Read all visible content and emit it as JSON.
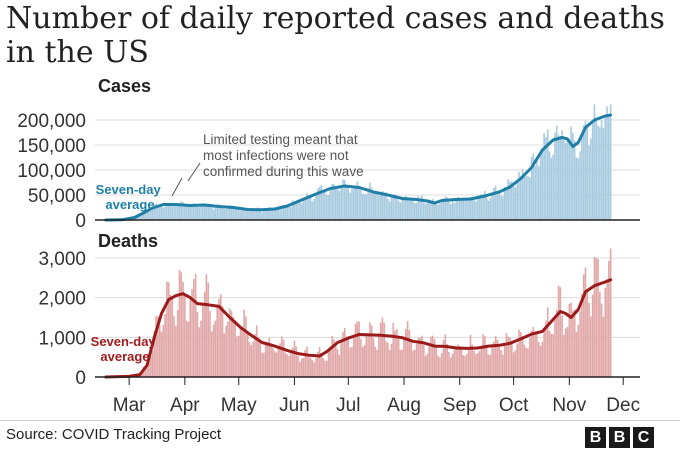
{
  "title": "Number of daily reported cases and deaths in the US",
  "source": "Source: COVID Tracking Project",
  "logo_letters": [
    "B",
    "B",
    "C"
  ],
  "months": [
    "Mar",
    "Apr",
    "May",
    "Jun",
    "Jul",
    "Aug",
    "Sep",
    "Oct",
    "Nov",
    "Dec"
  ],
  "chart_data": [
    {
      "type": "bar",
      "title": "Cases",
      "ylim": [
        0,
        220000
      ],
      "yticks": [
        0,
        50000,
        100000,
        150000,
        200000
      ],
      "ytick_labels": [
        "0",
        "50,000",
        "100,000",
        "150,000",
        "200,000"
      ],
      "colors": {
        "bars": "#a9cbe0",
        "line": "#1f7fa6",
        "label": "#1f7fa6"
      },
      "series": [
        {
          "name": "Seven-day average",
          "type": "line",
          "points": [
            [
              1,
              0
            ],
            [
              10,
              500
            ],
            [
              17,
              5000
            ],
            [
              22,
              14000
            ],
            [
              27,
              24000
            ],
            [
              33,
              31000
            ],
            [
              40,
              31000
            ],
            [
              48,
              29000
            ],
            [
              56,
              30000
            ],
            [
              64,
              27000
            ],
            [
              72,
              25000
            ],
            [
              80,
              21000
            ],
            [
              88,
              20500
            ],
            [
              95,
              22000
            ],
            [
              102,
              28000
            ],
            [
              110,
              40000
            ],
            [
              118,
              52000
            ],
            [
              126,
              63000
            ],
            [
              134,
              68000
            ],
            [
              142,
              65000
            ],
            [
              150,
              56000
            ],
            [
              158,
              50000
            ],
            [
              166,
              43000
            ],
            [
              174,
              41000
            ],
            [
              180,
              38000
            ],
            [
              184,
              34000
            ],
            [
              188,
              39000
            ],
            [
              196,
              41000
            ],
            [
              204,
              42000
            ],
            [
              212,
              48000
            ],
            [
              220,
              56000
            ],
            [
              226,
              66000
            ],
            [
              232,
              83000
            ],
            [
              238,
              105000
            ],
            [
              244,
              140000
            ],
            [
              250,
              160000
            ],
            [
              255,
              165000
            ],
            [
              258,
              162000
            ],
            [
              261,
              147000
            ],
            [
              264,
              155000
            ],
            [
              268,
              185000
            ],
            [
              273,
              200000
            ],
            [
              279,
              208000
            ],
            [
              282,
              210000
            ]
          ]
        }
      ],
      "annotations": [
        {
          "text": [
            "Seven-day",
            "average"
          ]
        },
        {
          "text": [
            "Limited testing meant that",
            "most infections were not",
            "confirmed during this wave"
          ]
        }
      ]
    },
    {
      "type": "bar",
      "title": "Deaths",
      "ylim": [
        0,
        3100
      ],
      "yticks": [
        0,
        1000,
        2000,
        3000
      ],
      "ytick_labels": [
        "0",
        "1,000",
        "2,000",
        "3,000"
      ],
      "colors": {
        "bars": "#e2a8a8",
        "line": "#9b1b1b",
        "label": "#a01c1c"
      },
      "series": [
        {
          "name": "Seven-day average",
          "type": "line",
          "points": [
            [
              1,
              0
            ],
            [
              14,
              15
            ],
            [
              20,
              60
            ],
            [
              24,
              300
            ],
            [
              28,
              1000
            ],
            [
              32,
              1600
            ],
            [
              36,
              1950
            ],
            [
              40,
              2050
            ],
            [
              44,
              2100
            ],
            [
              48,
              2000
            ],
            [
              52,
              1850
            ],
            [
              58,
              1820
            ],
            [
              64,
              1780
            ],
            [
              70,
              1500
            ],
            [
              76,
              1250
            ],
            [
              82,
              1050
            ],
            [
              88,
              870
            ],
            [
              95,
              780
            ],
            [
              102,
              670
            ],
            [
              108,
              590
            ],
            [
              114,
              550
            ],
            [
              120,
              530
            ],
            [
              124,
              640
            ],
            [
              130,
              870
            ],
            [
              136,
              980
            ],
            [
              142,
              1070
            ],
            [
              148,
              1060
            ],
            [
              154,
              1050
            ],
            [
              160,
              1030
            ],
            [
              166,
              990
            ],
            [
              172,
              900
            ],
            [
              178,
              860
            ],
            [
              184,
              780
            ],
            [
              190,
              770
            ],
            [
              196,
              730
            ],
            [
              202,
              720
            ],
            [
              208,
              730
            ],
            [
              214,
              780
            ],
            [
              220,
              800
            ],
            [
              226,
              850
            ],
            [
              232,
              960
            ],
            [
              238,
              1080
            ],
            [
              244,
              1150
            ],
            [
              250,
              1450
            ],
            [
              254,
              1650
            ],
            [
              257,
              1600
            ],
            [
              260,
              1500
            ],
            [
              264,
              1700
            ],
            [
              268,
              2150
            ],
            [
              273,
              2300
            ],
            [
              278,
              2380
            ],
            [
              282,
              2450
            ]
          ]
        }
      ],
      "annotations": [
        {
          "text": [
            "Seven-day",
            "average"
          ]
        }
      ]
    }
  ]
}
